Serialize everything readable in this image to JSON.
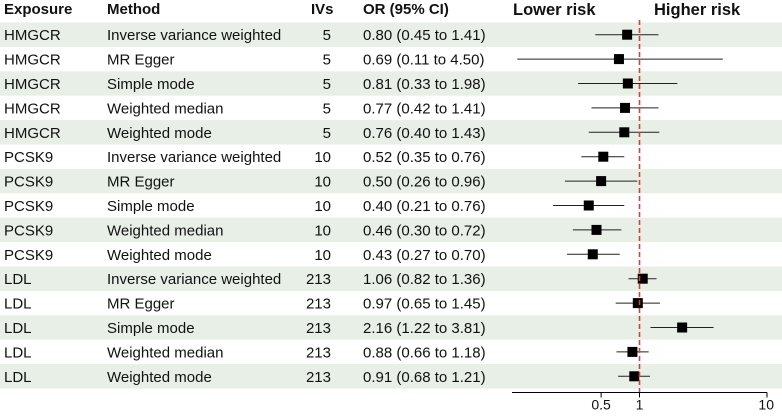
{
  "chart_data": {
    "type": "forest",
    "title": "",
    "columns": [
      "Exposure",
      "Method",
      "IVs",
      "OR (95% CI)"
    ],
    "direction_labels": {
      "left": "Lower risk",
      "right": "Higher risk"
    },
    "x_scale": "log",
    "xlim": [
      0.1,
      10
    ],
    "x_ticks": [
      {
        "value": 0.5,
        "label": "0.5"
      },
      {
        "value": 1,
        "label": "1"
      },
      {
        "value": 10,
        "label": "10"
      }
    ],
    "reference_line": 1,
    "rows": [
      {
        "exposure": "HMGCR",
        "method": "Inverse variance weighted",
        "ivs": "5",
        "or": 0.8,
        "low": 0.45,
        "high": 1.41,
        "ci_text": "0.80 (0.45 to 1.41)"
      },
      {
        "exposure": "HMGCR",
        "method": "MR Egger",
        "ivs": "5",
        "or": 0.69,
        "low": 0.11,
        "high": 4.5,
        "ci_text": "0.69 (0.11 to 4.50)"
      },
      {
        "exposure": "HMGCR",
        "method": "Simple mode",
        "ivs": "5",
        "or": 0.81,
        "low": 0.33,
        "high": 1.98,
        "ci_text": "0.81 (0.33 to 1.98)"
      },
      {
        "exposure": "HMGCR",
        "method": "Weighted median",
        "ivs": "5",
        "or": 0.77,
        "low": 0.42,
        "high": 1.41,
        "ci_text": "0.77 (0.42 to 1.41)"
      },
      {
        "exposure": "HMGCR",
        "method": "Weighted mode",
        "ivs": "5",
        "or": 0.76,
        "low": 0.4,
        "high": 1.43,
        "ci_text": "0.76 (0.40 to 1.43)"
      },
      {
        "exposure": "PCSK9",
        "method": "Inverse variance weighted",
        "ivs": "10",
        "or": 0.52,
        "low": 0.35,
        "high": 0.76,
        "ci_text": "0.52 (0.35 to 0.76)"
      },
      {
        "exposure": "PCSK9",
        "method": "MR Egger",
        "ivs": "10",
        "or": 0.5,
        "low": 0.26,
        "high": 0.96,
        "ci_text": "0.50 (0.26 to 0.96)"
      },
      {
        "exposure": "PCSK9",
        "method": "Simple mode",
        "ivs": "10",
        "or": 0.4,
        "low": 0.21,
        "high": 0.76,
        "ci_text": "0.40 (0.21 to 0.76)"
      },
      {
        "exposure": "PCSK9",
        "method": "Weighted median",
        "ivs": "10",
        "or": 0.46,
        "low": 0.3,
        "high": 0.72,
        "ci_text": "0.46 (0.30 to 0.72)"
      },
      {
        "exposure": "PCSK9",
        "method": "Weighted mode",
        "ivs": "10",
        "or": 0.43,
        "low": 0.27,
        "high": 0.7,
        "ci_text": "0.43 (0.27 to 0.70)"
      },
      {
        "exposure": "LDL",
        "method": "Inverse variance weighted",
        "ivs": "213",
        "or": 1.06,
        "low": 0.82,
        "high": 1.36,
        "ci_text": "1.06 (0.82 to 1.36)"
      },
      {
        "exposure": "LDL",
        "method": "MR Egger",
        "ivs": "213",
        "or": 0.97,
        "low": 0.65,
        "high": 1.45,
        "ci_text": "0.97 (0.65 to 1.45)"
      },
      {
        "exposure": "LDL",
        "method": "Simple mode",
        "ivs": "213",
        "or": 2.16,
        "low": 1.22,
        "high": 3.81,
        "ci_text": "2.16 (1.22 to 3.81)"
      },
      {
        "exposure": "LDL",
        "method": "Weighted median",
        "ivs": "213",
        "or": 0.88,
        "low": 0.66,
        "high": 1.18,
        "ci_text": "0.88 (0.66 to 1.18)"
      },
      {
        "exposure": "LDL",
        "method": "Weighted mode",
        "ivs": "213",
        "or": 0.91,
        "low": 0.68,
        "high": 1.21,
        "ci_text": "0.91 (0.68 to 1.21)"
      }
    ]
  },
  "colors": {
    "stripe": "#e7efe7",
    "marker": "#000000",
    "ci_line": "#222222",
    "reference": "#e03a3a",
    "axis": "#000000"
  }
}
